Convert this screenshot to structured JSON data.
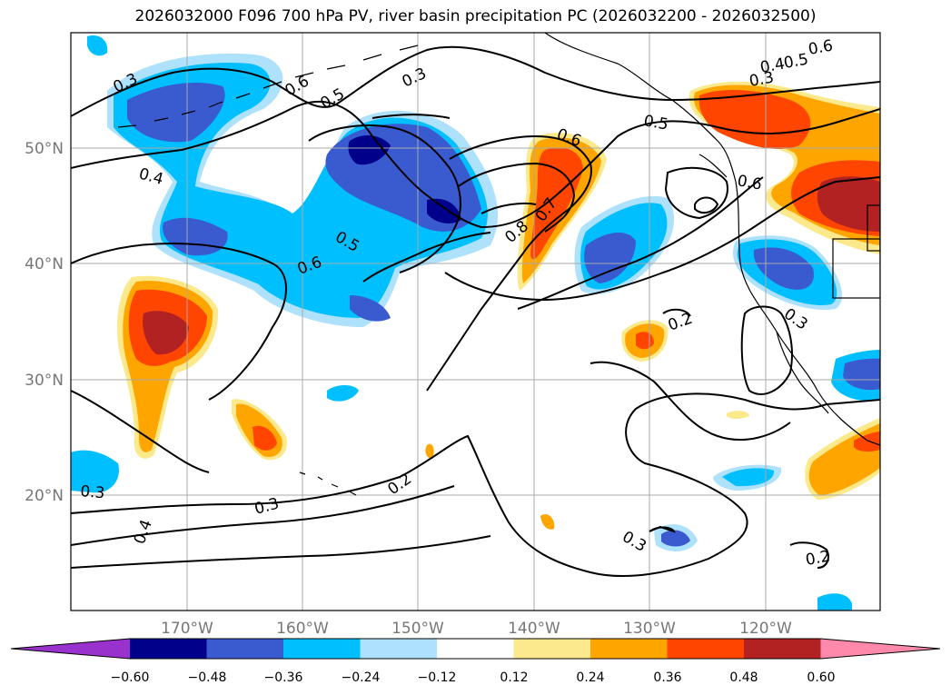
{
  "title": "2026032000 F096 700 hPa PV, river basin precipitation PC (2026032200 - 2026032500)",
  "map": {
    "lon_labels": [
      "170°W",
      "160°W",
      "150°W",
      "140°W",
      "130°W",
      "120°W"
    ],
    "lat_labels": [
      "50°N",
      "40°N",
      "30°N",
      "20°N"
    ],
    "contour_labels": [
      "0.3",
      "0.6",
      "0.5",
      "0.3",
      "0.6",
      "0.5",
      "0.4",
      "0.3",
      "0.6",
      "0.5",
      "0.6",
      "0.7",
      "0.8",
      "0.5",
      "0.6",
      "0.4",
      "0.2",
      "0.3",
      "0.2",
      "0.3",
      "0.4",
      "0.3",
      "0.2",
      "0.3"
    ]
  },
  "colorbar": {
    "labels": [
      "−0.60",
      "−0.48",
      "−0.36",
      "−0.24",
      "−0.12",
      "0.12",
      "0.24",
      "0.36",
      "0.48",
      "0.60"
    ],
    "colors": [
      "#9932cc",
      "#00008b",
      "#3a5bd0",
      "#00bfff",
      "#aee1fb",
      "#ffffff",
      "#fce98b",
      "#ffa500",
      "#ff4500",
      "#b22222",
      "#ff89aa"
    ]
  }
}
